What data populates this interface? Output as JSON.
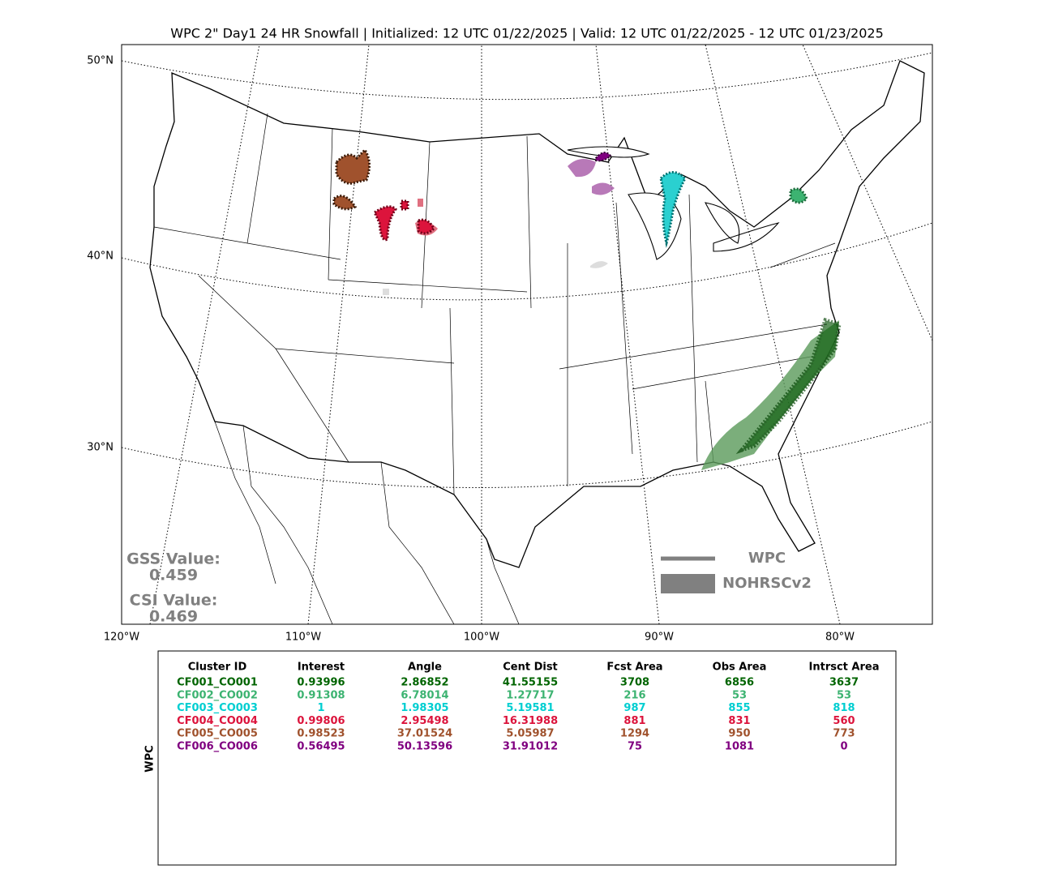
{
  "title": "WPC 2\" Day1 24 HR Snowfall | Initialized: 12 UTC 01/22/2025 | Valid: 12 UTC 01/22/2025 - 12 UTC 01/23/2025",
  "map": {
    "lat_labels": [
      "50°N",
      "40°N",
      "30°N"
    ],
    "lon_labels": [
      "120°W",
      "110°W",
      "100°W",
      "90°W",
      "80°W"
    ],
    "scores": [
      {
        "label": "GSS Value:",
        "value": 0.459
      },
      {
        "label": "CSI Value:",
        "value": 0.469
      }
    ],
    "legend": [
      {
        "label": "WPC",
        "color": "#808080"
      },
      {
        "label": "NOHRSCv2",
        "color": "#808080"
      }
    ]
  },
  "table": {
    "side_label": "WPC",
    "columns": [
      "Cluster ID",
      "Interest",
      "Angle",
      "Cent Dist",
      "Fcst Area",
      "Obs Area",
      "Intrsct Area"
    ],
    "rows": [
      {
        "color": "#006400",
        "cells": [
          "CF001_CO001",
          0.93996,
          2.86852,
          41.55155,
          3708,
          6856,
          3637
        ]
      },
      {
        "color": "#3cb371",
        "cells": [
          "CF002_CO002",
          0.91308,
          6.78014,
          1.27717,
          216,
          53,
          53
        ]
      },
      {
        "color": "#00ced1",
        "cells": [
          "CF003_CO003",
          1,
          1.98305,
          5.19581,
          987,
          855,
          818
        ]
      },
      {
        "color": "#dc143c",
        "cells": [
          "CF004_CO004",
          0.99806,
          2.95498,
          16.31988,
          881,
          831,
          560
        ]
      },
      {
        "color": "#a0522d",
        "cells": [
          "CF005_CO005",
          0.98523,
          37.01524,
          5.05987,
          1294,
          950,
          773
        ]
      },
      {
        "color": "#800080",
        "cells": [
          "CF006_CO006",
          0.56495,
          50.13596,
          31.91012,
          75,
          1081,
          0
        ]
      }
    ]
  }
}
